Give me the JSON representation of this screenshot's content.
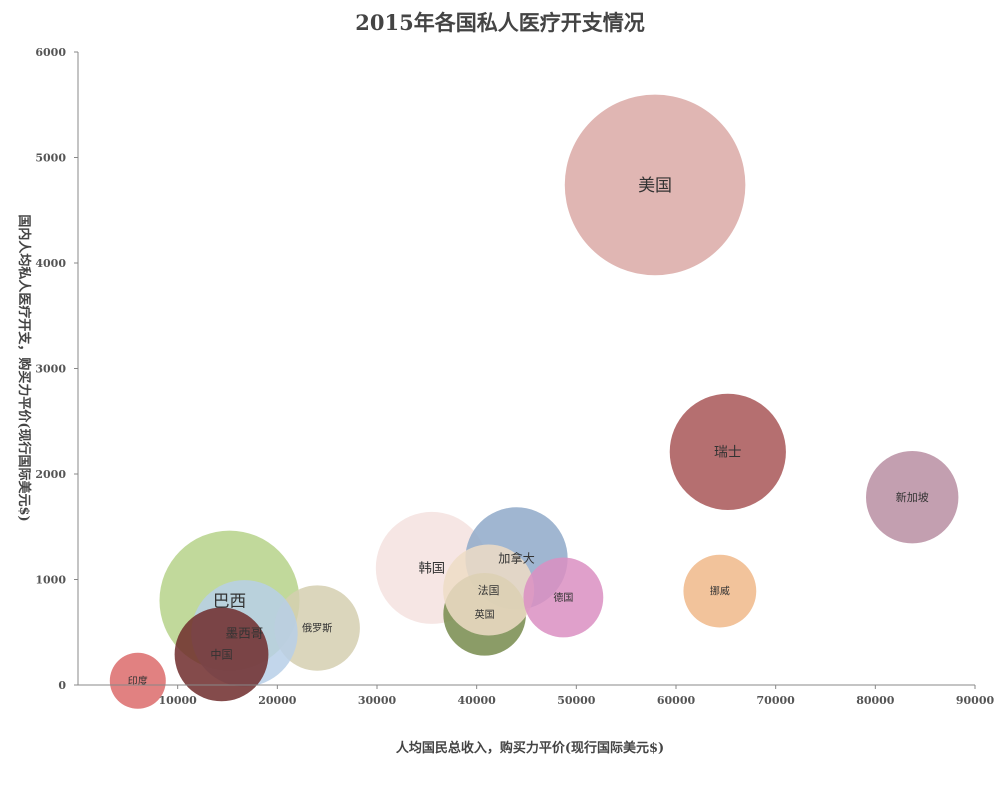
{
  "chart_data": {
    "type": "bubble",
    "title": "2015年各国私人医疗开支情况",
    "xlabel": "人均国民总收入，购买力平价(现行国际美元$)",
    "ylabel": "国内人均私人医疗开支，购买力平价(现行国际美元$)",
    "xlim": [
      0,
      90000
    ],
    "ylim": [
      0,
      6000
    ],
    "xticks": [
      "10000",
      "20000",
      "30000",
      "40000",
      "50000",
      "60000",
      "70000",
      "80000",
      "90000"
    ],
    "yticks": [
      "0",
      "1000",
      "2000",
      "3000",
      "4000",
      "5000",
      "6000"
    ],
    "grid": false,
    "legend": "none",
    "series": [
      {
        "label": "巴西",
        "x": 15200,
        "y": 800,
        "size": 1.0,
        "color": "#b6d28a"
      },
      {
        "label": "韩国",
        "x": 35500,
        "y": 1110,
        "size": 0.8,
        "color": "#f4e2df"
      },
      {
        "label": "加拿大",
        "x": 44000,
        "y": 1200,
        "size": 0.73,
        "color": "#8fa9c9"
      },
      {
        "label": "美国",
        "x": 57900,
        "y": 4740,
        "size": 1.29,
        "color": "#dba9a6"
      },
      {
        "label": "俄罗斯",
        "x": 24000,
        "y": 540,
        "size": 0.61,
        "color": "#d5cfb0"
      },
      {
        "label": "英国",
        "x": 40800,
        "y": 670,
        "size": 0.59,
        "color": "#778b4c"
      },
      {
        "label": "法国",
        "x": 41200,
        "y": 900,
        "size": 0.65,
        "color": "#eddcc6"
      },
      {
        "label": "德国",
        "x": 48700,
        "y": 830,
        "size": 0.57,
        "color": "#da8fc2"
      },
      {
        "label": "墨西哥",
        "x": 16700,
        "y": 490,
        "size": 0.76,
        "color": "#b7cfe7"
      },
      {
        "label": "中国",
        "x": 14400,
        "y": 290,
        "size": 0.67,
        "color": "#6e2b2b"
      },
      {
        "label": "印度",
        "x": 6000,
        "y": 40,
        "size": 0.4,
        "color": "#dc6b6b"
      },
      {
        "label": "瑞士",
        "x": 65200,
        "y": 2210,
        "size": 0.83,
        "color": "#a85657"
      },
      {
        "label": "挪威",
        "x": 64400,
        "y": 890,
        "size": 0.52,
        "color": "#f0b889"
      },
      {
        "label": "新加坡",
        "x": 83700,
        "y": 1780,
        "size": 0.66,
        "color": "#b98ea2"
      }
    ]
  }
}
